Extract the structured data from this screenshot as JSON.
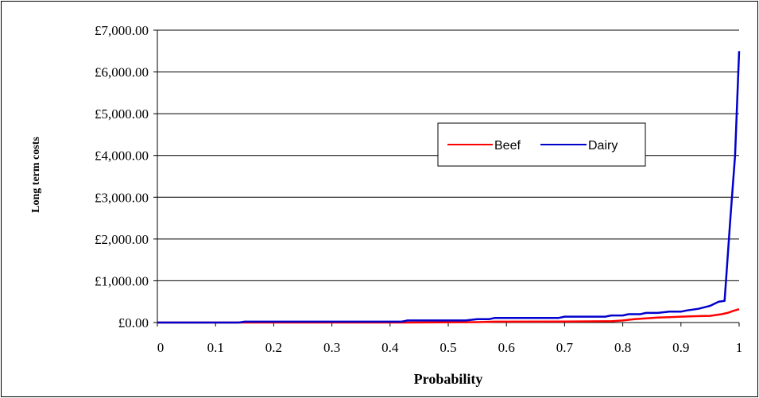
{
  "chart_data": {
    "type": "line",
    "title": "",
    "xlabel": "Probability",
    "ylabel": "Long term costs",
    "xlim": [
      0,
      1
    ],
    "ylim": [
      0,
      7000
    ],
    "x_ticks": [
      0,
      0.1,
      0.2,
      0.3,
      0.4,
      0.5,
      0.6,
      0.7,
      0.8,
      0.9,
      1
    ],
    "x_tick_labels": [
      "0",
      "0.1",
      "0.2",
      "0.3",
      "0.4",
      "0.5",
      "0.6",
      "0.7",
      "0.8",
      "0.9",
      "1"
    ],
    "y_ticks": [
      0,
      1000,
      2000,
      3000,
      4000,
      5000,
      6000,
      7000
    ],
    "y_tick_labels": [
      "£0.00",
      "£1,000.00",
      "£2,000.00",
      "£3,000.00",
      "£4,000.00",
      "£5,000.00",
      "£6,000.00",
      "£7,000.00"
    ],
    "grid": "horizontal",
    "legend_position": "center-right",
    "series": [
      {
        "name": "Beef",
        "color": "#ff0000",
        "x": [
          0,
          0.15,
          0.3,
          0.42,
          0.55,
          0.58,
          0.7,
          0.78,
          0.8,
          0.82,
          0.84,
          0.86,
          0.88,
          0.9,
          0.92,
          0.95,
          0.97,
          0.98,
          0.99,
          1.0
        ],
        "y": [
          0,
          0,
          0,
          0,
          10,
          20,
          25,
          30,
          50,
          80,
          100,
          120,
          130,
          140,
          150,
          160,
          200,
          230,
          280,
          320
        ]
      },
      {
        "name": "Dairy",
        "color": "#0000cc",
        "x": [
          0,
          0.14,
          0.15,
          0.3,
          0.42,
          0.43,
          0.53,
          0.55,
          0.57,
          0.58,
          0.69,
          0.7,
          0.77,
          0.78,
          0.8,
          0.81,
          0.83,
          0.84,
          0.86,
          0.88,
          0.9,
          0.91,
          0.93,
          0.95,
          0.965,
          0.975,
          0.985,
          0.993,
          1.0
        ],
        "y": [
          0,
          0,
          20,
          20,
          20,
          50,
          50,
          80,
          80,
          110,
          110,
          140,
          140,
          170,
          170,
          200,
          200,
          230,
          230,
          260,
          260,
          290,
          330,
          400,
          500,
          520,
          2500,
          4000,
          6500
        ]
      }
    ]
  }
}
